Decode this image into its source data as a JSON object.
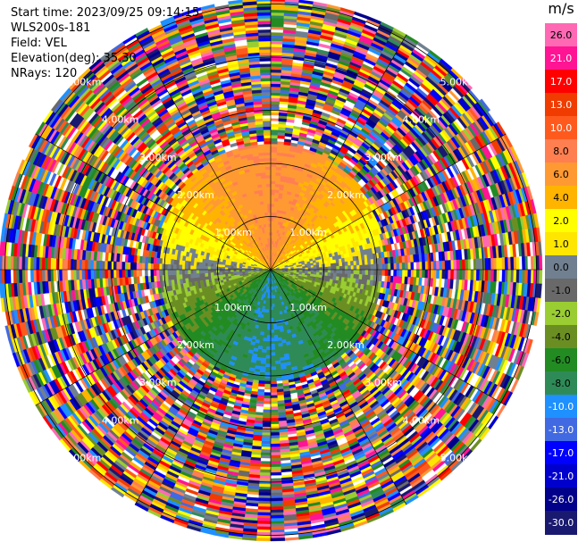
{
  "header": {
    "start_time": "Start time: 2023/09/25 09:14:15",
    "instrument": "WLS200s-181",
    "field": "Field: VEL",
    "elevation": "Elevation(deg): 35.30",
    "nrays": "NRays: 120"
  },
  "ppi": {
    "range_rings_km": [
      1.0,
      2.0,
      3.0,
      4.0,
      5.0
    ],
    "ring_label": "km",
    "ring_label_texts": [
      "1.00km",
      "2.00km",
      "3.00km",
      "4.00km",
      "5.00km"
    ],
    "n_rays": 120
  },
  "colorbar": {
    "unit": "m/s",
    "ticks": [
      "26.0",
      "21.0",
      "17.0",
      "13.0",
      "10.0",
      "8.0",
      "6.0",
      "4.0",
      "2.0",
      "1.0",
      "0.0",
      "-1.0",
      "-2.0",
      "-4.0",
      "-6.0",
      "-8.0",
      "-10.0",
      "-13.0",
      "-17.0",
      "-21.0",
      "-26.0",
      "-30.0"
    ],
    "colors": [
      "#ff69b4",
      "#ff1493",
      "#ff0000",
      "#f03c00",
      "#ff5a1e",
      "#ff7f50",
      "#ff9a33",
      "#ffb400",
      "#ffff00",
      "#ffe600",
      "#708090",
      "#696969",
      "#9acd32",
      "#6b8e23",
      "#228b22",
      "#2e8b57",
      "#1e90ff",
      "#4169e1",
      "#0000ff",
      "#0000cd",
      "#00008b",
      "#191970"
    ]
  }
}
